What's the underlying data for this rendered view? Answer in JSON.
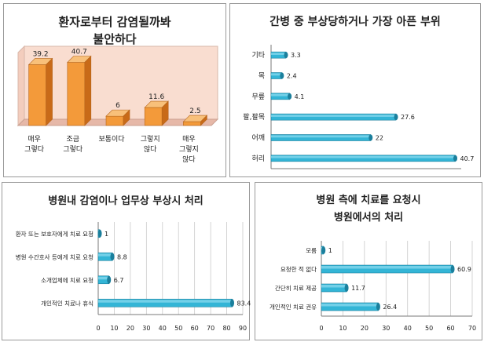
{
  "chart_data": [
    {
      "id": "c1",
      "type": "bar",
      "orientation": "vertical",
      "style": "3d",
      "title_lines": [
        "환자로부터 감염될까봐",
        "불안하다"
      ],
      "categories": [
        [
          "매우",
          "그렇다"
        ],
        [
          "조금",
          "그렇다"
        ],
        [
          "보통이다"
        ],
        [
          "그렇지",
          "않다"
        ],
        [
          "매우",
          "그렇지",
          "않다"
        ]
      ],
      "values": [
        39.2,
        40.7,
        6,
        11.6,
        2.5
      ],
      "value_labels": [
        "39.2",
        "40.7",
        "6",
        "11.6",
        "2.5"
      ],
      "ylim": [
        0,
        45
      ],
      "grid": false,
      "colors": {
        "bar": "#f39a3a",
        "bar_top": "#f8c07a",
        "bar_side": "#c86a18",
        "wall": "#f9ddd0",
        "floor": "#e6b8a8"
      }
    },
    {
      "id": "c2",
      "type": "bar",
      "orientation": "horizontal",
      "title_lines": [
        "간병 중 부상당하거나 가장 아픈 부위"
      ],
      "categories": [
        "기타",
        "목",
        "무릎",
        "팔,팔목",
        "어깨",
        "허리"
      ],
      "values": [
        3.3,
        2.4,
        4.1,
        27.6,
        22,
        40.7
      ],
      "value_labels": [
        "3.3",
        "2.4",
        "4.1",
        "27.6",
        "22",
        "40.7"
      ],
      "xlim": [
        0,
        42
      ],
      "grid": false,
      "colors": {
        "bar": "#33b5d6",
        "bar_dark": "#1b7f9c",
        "bar_light": "#8fdcef"
      }
    },
    {
      "id": "c3",
      "type": "bar",
      "orientation": "horizontal",
      "title_lines": [
        "병원내 감염이나 업무상 부상시 처리"
      ],
      "categories": [
        "환자 또는 보호자에게 치료 요청",
        "병원 수간호사 등에게 치료 요청",
        "소개업체에 치료 요청",
        "개인적인 치료나 휴식"
      ],
      "values": [
        1,
        8.8,
        6.7,
        83.4
      ],
      "value_labels": [
        "1",
        "8.8",
        "6.7",
        "83.4"
      ],
      "xlim": [
        0,
        90
      ],
      "xticks": [
        0,
        10,
        20,
        30,
        40,
        50,
        60,
        70,
        80,
        90
      ],
      "grid": true,
      "colors": {
        "bar": "#33b5d6",
        "bar_dark": "#1b7f9c",
        "bar_light": "#8fdcef",
        "grid": "#c9c9c9"
      }
    },
    {
      "id": "c4",
      "type": "bar",
      "orientation": "horizontal",
      "title_lines": [
        "병원 측에 치료를 요청시",
        "병원에서의 처리"
      ],
      "categories": [
        "모름",
        "요청한 적 없다",
        "간단히 치료 제공",
        "개인적인 치료 권유"
      ],
      "values": [
        1,
        60.9,
        11.7,
        26.4
      ],
      "value_labels": [
        "1",
        "60.9",
        "11.7",
        "26.4"
      ],
      "xlim": [
        0,
        70
      ],
      "xticks": [
        0,
        10,
        20,
        30,
        40,
        50,
        60,
        70
      ],
      "grid": true,
      "colors": {
        "bar": "#33b5d6",
        "bar_dark": "#1b7f9c",
        "bar_light": "#8fdcef",
        "grid": "#c9c9c9"
      }
    }
  ]
}
